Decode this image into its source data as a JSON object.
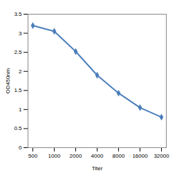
{
  "chart_data": {
    "type": "line",
    "x_label": "Titer",
    "y_label": "OD450nm",
    "categories": [
      "500",
      "1000",
      "2000",
      "4000",
      "8000",
      "16000",
      "32000"
    ],
    "values": [
      3.2,
      3.05,
      2.52,
      1.9,
      1.43,
      1.05,
      0.8
    ],
    "color": "#4a7ebb",
    "marker": "diamond",
    "ylim": [
      0,
      3.5
    ],
    "yticks": [
      0,
      0.5,
      1,
      1.5,
      2,
      2.5,
      3,
      3.5
    ],
    "grid": false
  }
}
